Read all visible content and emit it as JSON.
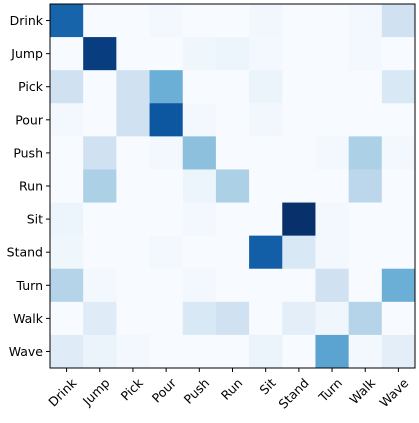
{
  "chart_data": {
    "type": "heatmap",
    "title": "",
    "xlabel": "",
    "ylabel": "",
    "grid": false,
    "colormap": "Blues",
    "x_categories": [
      "Drink",
      "Jump",
      "Pick",
      "Pour",
      "Push",
      "Run",
      "Sit",
      "Stand",
      "Turn",
      "Walk",
      "Wave"
    ],
    "y_categories": [
      "Drink",
      "Jump",
      "Pick",
      "Pour",
      "Push",
      "Run",
      "Sit",
      "Stand",
      "Turn",
      "Walk",
      "Wave"
    ],
    "x_label_colors": [
      "#000000",
      "#000000",
      "#000000",
      "#000000",
      "#000000",
      "#000000",
      "#000000",
      "#000000",
      "#000000",
      "#000000",
      "#555555"
    ],
    "vmin": 0,
    "vmax": 1,
    "values": [
      [
        0.8,
        0.0,
        0.0,
        0.02,
        0.0,
        0.0,
        0.03,
        0.0,
        0.0,
        0.02,
        0.2
      ],
      [
        0.0,
        0.95,
        0.0,
        0.0,
        0.04,
        0.05,
        0.02,
        0.0,
        0.0,
        0.02,
        0.0
      ],
      [
        0.2,
        0.0,
        0.2,
        0.5,
        0.0,
        0.0,
        0.06,
        0.0,
        0.0,
        0.0,
        0.15
      ],
      [
        0.02,
        0.0,
        0.2,
        0.85,
        0.02,
        0.0,
        0.03,
        0.0,
        0.0,
        0.0,
        0.0
      ],
      [
        0.0,
        0.2,
        0.0,
        0.02,
        0.42,
        0.0,
        0.0,
        0.0,
        0.02,
        0.33,
        0.02
      ],
      [
        0.0,
        0.33,
        0.0,
        0.0,
        0.05,
        0.33,
        0.0,
        0.0,
        0.0,
        0.28,
        0.0
      ],
      [
        0.05,
        0.0,
        0.0,
        0.0,
        0.02,
        0.0,
        0.0,
        1.0,
        0.02,
        0.0,
        0.0
      ],
      [
        0.04,
        0.0,
        0.0,
        0.02,
        0.0,
        0.0,
        0.82,
        0.15,
        0.02,
        0.0,
        0.0
      ],
      [
        0.3,
        0.02,
        0.0,
        0.0,
        0.02,
        0.0,
        0.0,
        0.0,
        0.2,
        0.0,
        0.5
      ],
      [
        0.0,
        0.12,
        0.0,
        0.0,
        0.15,
        0.2,
        0.0,
        0.1,
        0.04,
        0.3,
        0.0
      ],
      [
        0.12,
        0.06,
        0.02,
        0.0,
        0.0,
        0.0,
        0.06,
        0.0,
        0.55,
        0.02,
        0.1
      ]
    ]
  }
}
